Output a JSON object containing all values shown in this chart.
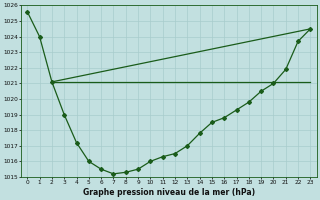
{
  "title": "Graphe pression niveau de la mer (hPa)",
  "bg_color": "#c2e0e0",
  "line_color": "#1a5c1a",
  "grid_color": "#a8cccc",
  "xlim": [
    -0.5,
    23.5
  ],
  "ylim": [
    1015,
    1026
  ],
  "yticks": [
    1015,
    1016,
    1017,
    1018,
    1019,
    1020,
    1021,
    1022,
    1023,
    1024,
    1025,
    1026
  ],
  "xticks": [
    0,
    1,
    2,
    3,
    4,
    5,
    6,
    7,
    8,
    9,
    10,
    11,
    12,
    13,
    14,
    15,
    16,
    17,
    18,
    19,
    20,
    21,
    22,
    23
  ],
  "series_main": {
    "x": [
      0,
      1,
      2,
      3,
      4,
      5,
      6,
      7,
      8,
      9,
      10,
      11,
      12,
      13,
      14,
      15,
      16,
      17,
      18,
      19,
      20,
      21,
      22,
      23
    ],
    "y": [
      1025.6,
      1024.0,
      1021.1,
      1019.0,
      1017.2,
      1016.0,
      1015.5,
      1015.2,
      1015.3,
      1015.5,
      1016.0,
      1016.3,
      1016.5,
      1017.0,
      1017.8,
      1018.5,
      1018.8,
      1019.3,
      1019.8,
      1020.5,
      1021.0,
      1021.9,
      1023.7,
      1024.5
    ]
  },
  "series_flat": {
    "x": [
      2,
      23
    ],
    "y": [
      1021.1,
      1021.1
    ]
  },
  "series_rising": {
    "x": [
      2,
      23
    ],
    "y": [
      1021.1,
      1024.5
    ]
  }
}
